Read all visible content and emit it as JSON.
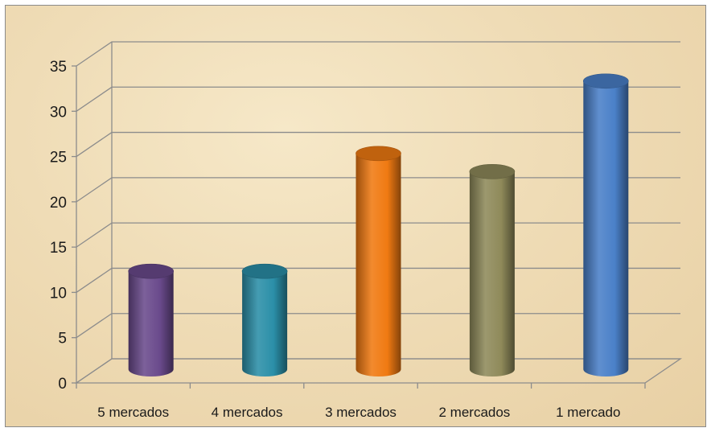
{
  "chart_data": {
    "type": "bar",
    "style": "3d-cylinder",
    "categories": [
      "5 mercados",
      "4 mercados",
      "3 mercados",
      "2 mercados",
      "1 mercado"
    ],
    "values": [
      11,
      11,
      24,
      22,
      32
    ],
    "colors": [
      "#6a4a8c",
      "#2b8fa8",
      "#f07a12",
      "#8f8a5a",
      "#4a80c8"
    ],
    "ylim": [
      0,
      35
    ],
    "yticks": [
      0,
      5,
      10,
      15,
      20,
      25,
      30,
      35
    ],
    "grid": true,
    "legend": "none",
    "title": "",
    "xlabel": "",
    "ylabel": ""
  }
}
